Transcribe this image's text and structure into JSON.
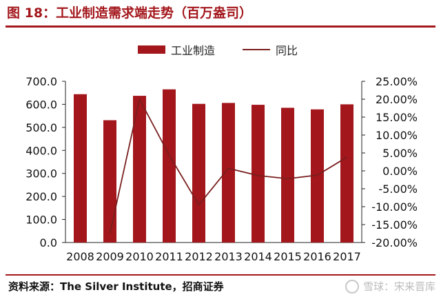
{
  "title": "图 18：工业制造需求端走势（百万盎司）",
  "source": "资料来源：The Silver Institute，招商证券",
  "watermark": "雪球：宋来晋库",
  "colors": {
    "accent": "#a3161b",
    "bar": "#a3161b",
    "line": "#7a1e1e"
  },
  "chart_data": {
    "type": "bar",
    "categories": [
      "2008",
      "2009",
      "2010",
      "2011",
      "2012",
      "2013",
      "2014",
      "2015",
      "2016",
      "2017"
    ],
    "series": [
      {
        "name": "工业制造",
        "type": "bar",
        "axis": "left",
        "values": [
          644,
          531,
          637,
          665,
          602,
          606,
          598,
          585,
          578,
          600
        ]
      },
      {
        "name": "同比",
        "type": "line",
        "axis": "right",
        "values": [
          null,
          -17.5,
          20.0,
          4.4,
          -9.5,
          0.7,
          -1.3,
          -2.2,
          -1.2,
          3.8
        ]
      }
    ],
    "left_axis": {
      "ylim": [
        0,
        700
      ],
      "ticks": [
        "0.0",
        "100.0",
        "200.0",
        "300.0",
        "400.0",
        "500.0",
        "600.0",
        "700.0"
      ]
    },
    "right_axis": {
      "ylim": [
        -20,
        25
      ],
      "ticks": [
        "-20.00%",
        "-15.00%",
        "-10.00%",
        "-5.00%",
        "0.00%",
        "5.00%",
        "10.00%",
        "15.00%",
        "20.00%",
        "25.00%"
      ]
    },
    "legend_position": "top-center",
    "grid": false
  }
}
